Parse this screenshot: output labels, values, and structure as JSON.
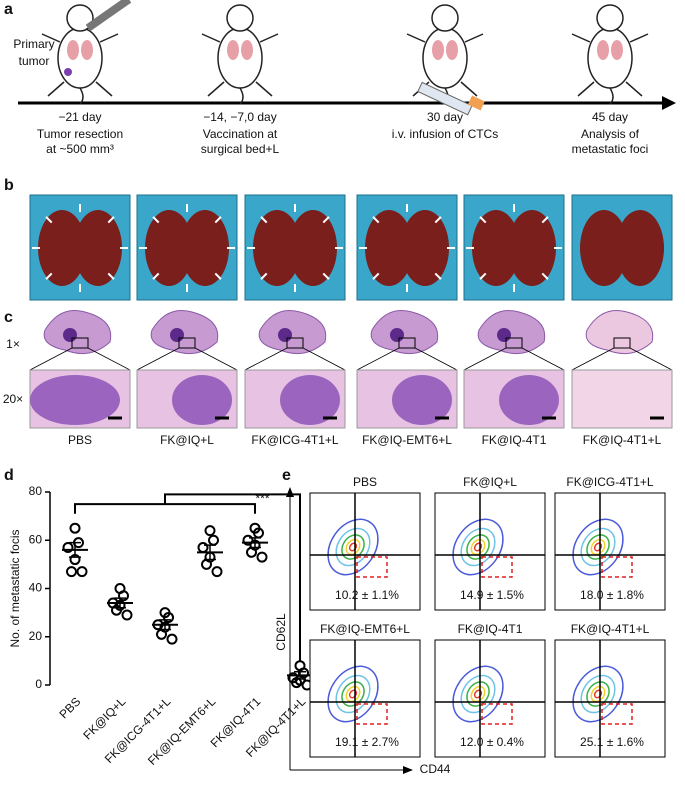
{
  "panel_labels": [
    "a",
    "b",
    "c",
    "d",
    "e"
  ],
  "timeline": {
    "primary_tumor": [
      "Primary",
      "tumor"
    ],
    "events": [
      {
        "day": "−21 day",
        "lines": [
          "Tumor resection",
          "at ~500 mm³"
        ]
      },
      {
        "day": "−14, −7,0 day",
        "lines": [
          "Vaccination at",
          "surgical bed+L"
        ]
      },
      {
        "day": "30 day",
        "lines": [
          "i.v. infusion of CTCs"
        ]
      },
      {
        "day": "45 day",
        "lines": [
          "Analysis of",
          "metastatic foci"
        ]
      }
    ]
  },
  "histology": {
    "magnifications": [
      "1×",
      "20×"
    ],
    "groups": [
      "PBS",
      "FK@IQ+L",
      "FK@ICG-4T1+L",
      "FK@IQ-EMT6+L",
      "FK@IQ-4T1",
      "FK@IQ-4T1+L"
    ]
  },
  "chart_data": {
    "type": "dotplot",
    "ylabel": "No. of metastatic focis",
    "categories": [
      "PBS",
      "FK@IQ+L",
      "FK@ICG-4T1+L",
      "FK@IQ-EMT6+L",
      "FK@IQ-4T1",
      "FK@IQ-4T1+L"
    ],
    "values": [
      56,
      34,
      25,
      55,
      59,
      4
    ],
    "errors": [
      3,
      2,
      2,
      3,
      2,
      1.5
    ],
    "points": [
      [
        65,
        59,
        57,
        52,
        47,
        47
      ],
      [
        40,
        37,
        34,
        33,
        31,
        29
      ],
      [
        30,
        28,
        25,
        24,
        21,
        19
      ],
      [
        64,
        60,
        57,
        53,
        50,
        47
      ],
      [
        65,
        63,
        60,
        58,
        55,
        53
      ],
      [
        8,
        5,
        3,
        2,
        1,
        0
      ]
    ],
    "significance": "***",
    "ylim": [
      0,
      80
    ],
    "yticks": [
      0,
      20,
      40,
      60,
      80
    ],
    "color": "#000000"
  },
  "flow": {
    "x_label": "CD44",
    "y_label": "CD62L",
    "plots": [
      {
        "title": "PBS",
        "value": "10.2 ± 1.1%"
      },
      {
        "title": "FK@IQ+L",
        "value": "14.9 ± 1.5%"
      },
      {
        "title": "FK@ICG-4T1+L",
        "value": "18.0 ± 1.8%"
      },
      {
        "title": "FK@IQ-EMT6+L",
        "value": "19.1 ± 2.7%"
      },
      {
        "title": "FK@IQ-4T1",
        "value": "12.0 ± 0.4%"
      },
      {
        "title": "FK@IQ-4T1+L",
        "value": "25.1 ± 1.6%"
      }
    ]
  }
}
